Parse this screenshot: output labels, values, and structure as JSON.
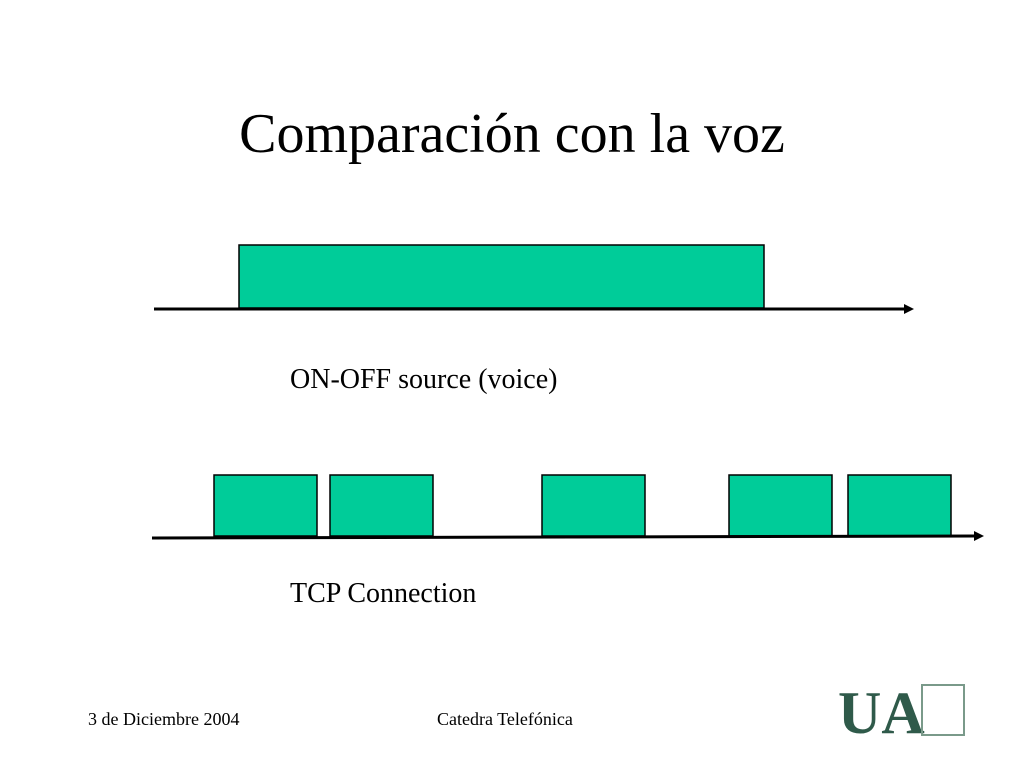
{
  "header": {
    "title": "Comparación con la voz"
  },
  "diagrams": [
    {
      "label": "ON-OFF source (voice)"
    },
    {
      "label": "TCP Connection"
    }
  ],
  "footer": {
    "date": "3 de Diciembre 2004",
    "center": "Catedra Telefónica",
    "logo": "UA"
  }
}
